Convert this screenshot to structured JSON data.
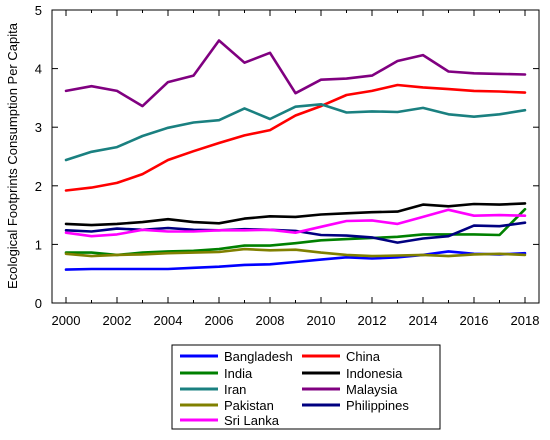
{
  "chart_data": {
    "type": "line",
    "ylabel": "Ecological Footprints Consumption Per Capita",
    "xlabel": "",
    "ylim": [
      0,
      5
    ],
    "xlim": [
      2000,
      2018
    ],
    "x": [
      2000,
      2001,
      2002,
      2003,
      2004,
      2005,
      2006,
      2007,
      2008,
      2009,
      2010,
      2011,
      2012,
      2013,
      2014,
      2015,
      2016,
      2017,
      2018
    ],
    "x_ticks": [
      "2000",
      "2002",
      "2004",
      "2006",
      "2008",
      "2010",
      "2012",
      "2014",
      "2016",
      "2018"
    ],
    "y_ticks": [
      "0",
      "1",
      "2",
      "3",
      "4",
      "5"
    ],
    "grid": false,
    "legend_position": "bottom",
    "series": [
      {
        "name": "Bangladesh",
        "color": "#0000ff",
        "values": [
          0.57,
          0.58,
          0.58,
          0.58,
          0.58,
          0.6,
          0.62,
          0.65,
          0.66,
          0.7,
          0.74,
          0.78,
          0.76,
          0.78,
          0.82,
          0.88,
          0.84,
          0.83,
          0.85
        ]
      },
      {
        "name": "China",
        "color": "#ff0000",
        "values": [
          1.92,
          1.97,
          2.05,
          2.2,
          2.44,
          2.59,
          2.73,
          2.86,
          2.95,
          3.2,
          3.36,
          3.55,
          3.62,
          3.72,
          3.68,
          3.65,
          3.62,
          3.61,
          3.59
        ]
      },
      {
        "name": "India",
        "color": "#008000",
        "values": [
          0.86,
          0.86,
          0.82,
          0.86,
          0.88,
          0.89,
          0.92,
          0.98,
          0.98,
          1.02,
          1.07,
          1.09,
          1.11,
          1.13,
          1.17,
          1.17,
          1.17,
          1.16,
          1.6
        ]
      },
      {
        "name": "Indonesia",
        "color": "#000000",
        "values": [
          1.35,
          1.33,
          1.35,
          1.38,
          1.43,
          1.38,
          1.36,
          1.44,
          1.48,
          1.47,
          1.51,
          1.53,
          1.55,
          1.56,
          1.68,
          1.65,
          1.69,
          1.68,
          1.7
        ]
      },
      {
        "name": "Iran",
        "color": "#1a8080",
        "values": [
          2.44,
          2.58,
          2.66,
          2.85,
          2.99,
          3.08,
          3.12,
          3.32,
          3.14,
          3.35,
          3.39,
          3.25,
          3.27,
          3.26,
          3.33,
          3.22,
          3.18,
          3.22,
          3.29
        ]
      },
      {
        "name": "Malaysia",
        "color": "#800080",
        "values": [
          3.62,
          3.7,
          3.62,
          3.36,
          3.77,
          3.88,
          4.48,
          4.1,
          4.27,
          3.58,
          3.81,
          3.83,
          3.88,
          4.13,
          4.23,
          3.95,
          3.92,
          3.91,
          3.9
        ]
      },
      {
        "name": "Pakistan",
        "color": "#808000",
        "values": [
          0.84,
          0.8,
          0.82,
          0.83,
          0.85,
          0.86,
          0.87,
          0.92,
          0.9,
          0.91,
          0.86,
          0.82,
          0.8,
          0.81,
          0.82,
          0.8,
          0.83,
          0.84,
          0.82
        ]
      },
      {
        "name": "Philippines",
        "color": "#000080",
        "values": [
          1.24,
          1.22,
          1.27,
          1.25,
          1.28,
          1.25,
          1.24,
          1.26,
          1.25,
          1.23,
          1.16,
          1.15,
          1.12,
          1.03,
          1.1,
          1.14,
          1.32,
          1.31,
          1.37
        ]
      },
      {
        "name": "Sri Lanka",
        "color": "#ff00ff",
        "values": [
          1.2,
          1.14,
          1.17,
          1.25,
          1.22,
          1.22,
          1.24,
          1.24,
          1.25,
          1.2,
          1.3,
          1.4,
          1.41,
          1.35,
          1.47,
          1.59,
          1.49,
          1.5,
          1.49
        ]
      }
    ]
  }
}
